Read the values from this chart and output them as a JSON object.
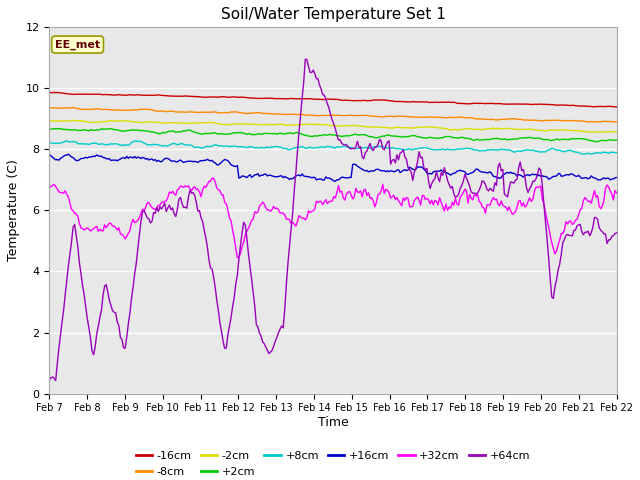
{
  "title": "Soil/Water Temperature Set 1",
  "xlabel": "Time",
  "ylabel": "Temperature (C)",
  "ylim": [
    0,
    12
  ],
  "annotation": "EE_met",
  "fig_bg": "#ffffff",
  "plot_bg": "#e8e8e8",
  "legend_entries": [
    "-16cm",
    "-8cm",
    "-2cm",
    "+2cm",
    "+8cm",
    "+16cm",
    "+32cm",
    "+64cm"
  ],
  "legend_colors": [
    "#cc0000",
    "#ff8800",
    "#dddd00",
    "#00cc00",
    "#00cccc",
    "#0000cc",
    "#ff00ff",
    "#9900bb"
  ],
  "n_points": 360,
  "tick_labels": [
    "Feb 7",
    "Feb 8",
    "Feb 9",
    "Feb 10",
    "Feb 11",
    "Feb 12",
    "Feb 13",
    "Feb 14",
    "Feb 15",
    "Feb 16",
    "Feb 17",
    "Feb 18",
    "Feb 19",
    "Feb 20",
    "Feb 21",
    "Feb 22"
  ]
}
